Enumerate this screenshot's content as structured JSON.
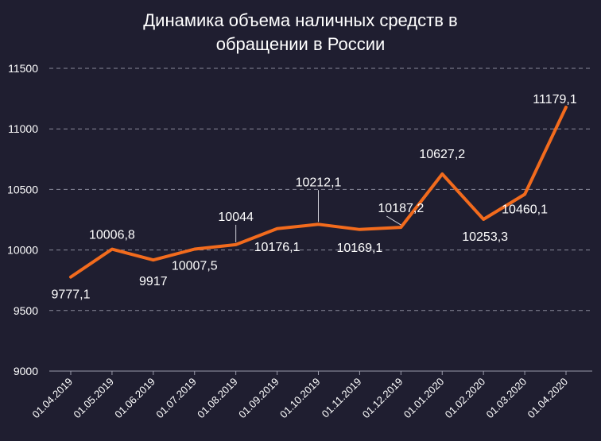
{
  "chart_data": {
    "type": "line",
    "title_lines": [
      "Динамика объема наличных средств в",
      "обращении в России"
    ],
    "categories": [
      "01.04.2019",
      "01.05.2019",
      "01.06.2019",
      "01.07.2019",
      "01.08.2019",
      "01.09.2019",
      "01.10.2019",
      "01.11.2019",
      "01.12.2019",
      "01.01.2020",
      "01.02.2020",
      "01.03.2020",
      "01.04.2020"
    ],
    "values": [
      9777.1,
      10006.8,
      9917,
      10007.5,
      10044,
      10176.1,
      10212.1,
      10169.1,
      10187.2,
      10627.2,
      10253.3,
      10460.1,
      11179.1
    ],
    "data_labels": [
      "9777,1",
      "10006,8",
      "9917",
      "10007,5",
      "10044",
      "10176,1",
      "10212,1",
      "10169,1",
      "10187,2",
      "10627,2",
      "10253,3",
      "10460,1",
      "11179,1"
    ],
    "ylim": [
      9000,
      11500
    ],
    "yticks": [
      9000,
      9500,
      10000,
      10500,
      11000,
      11500
    ],
    "grid": true,
    "line_color": "#f26b1d"
  }
}
